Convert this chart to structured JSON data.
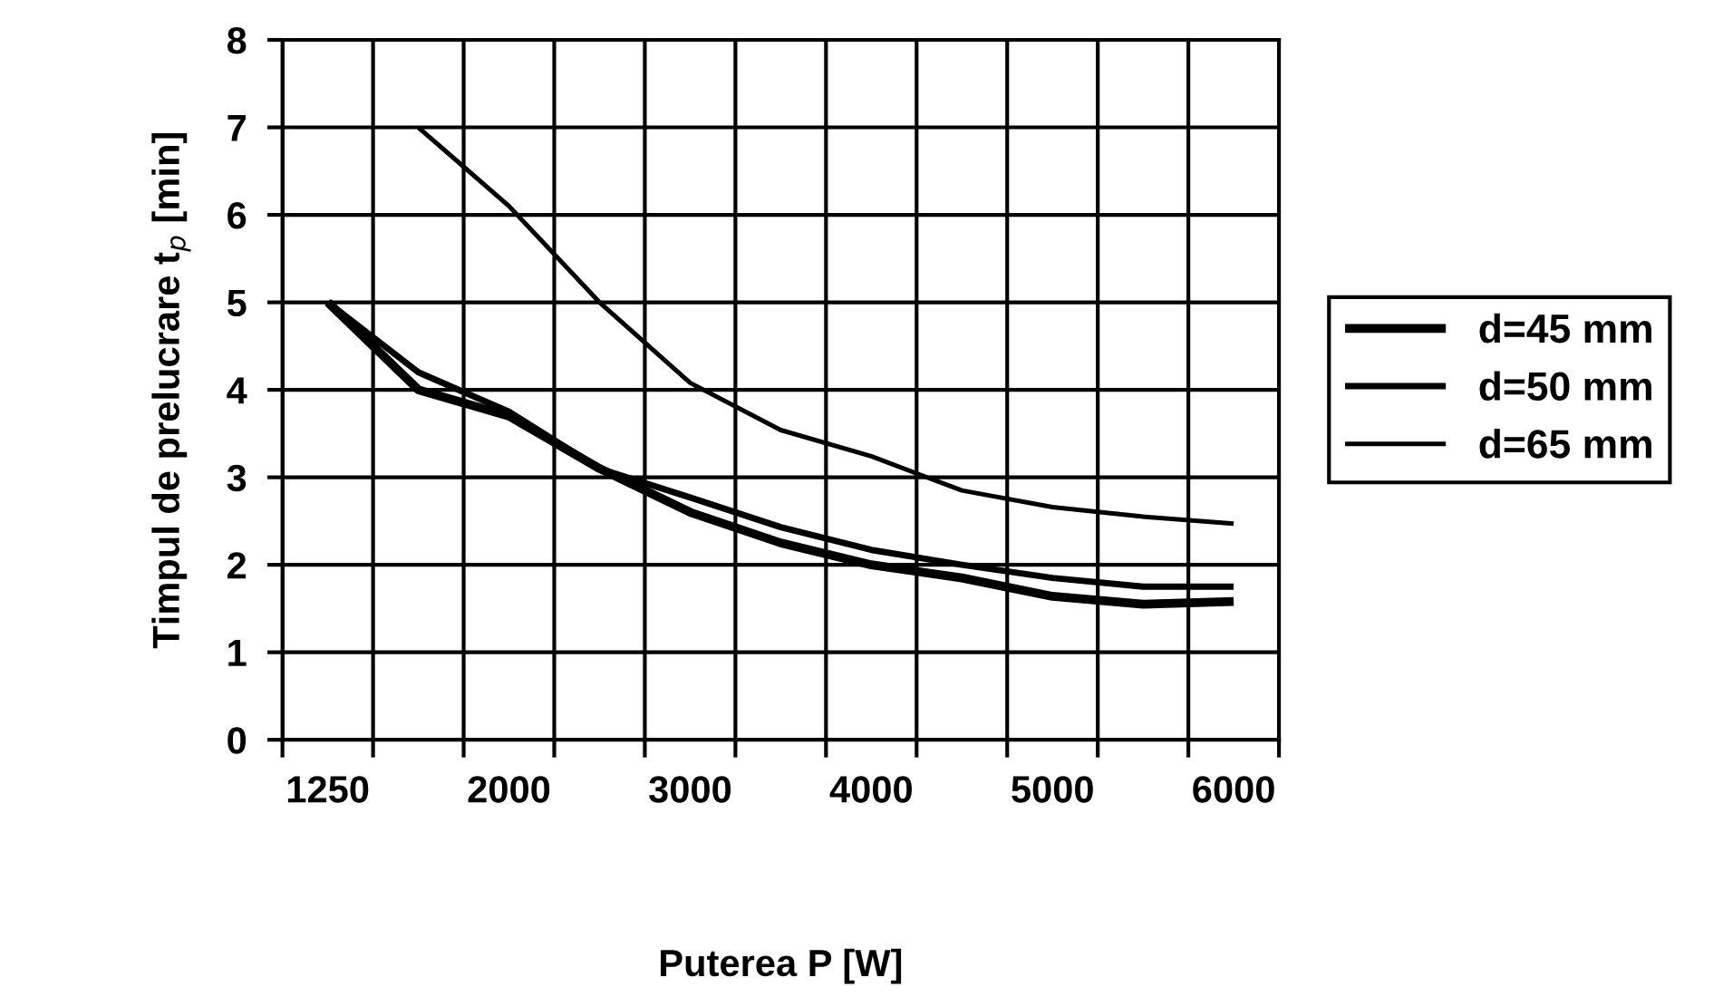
{
  "chart_data": {
    "type": "line",
    "xlabel": "Puterea P [W]",
    "ylabel": "Timpul de prelucrare t$_{p}$ [min]",
    "categories": [
      "1250",
      null,
      "2000",
      null,
      "3000",
      null,
      "4000",
      null,
      "5000",
      null,
      "6000"
    ],
    "series": [
      {
        "name": "d=45 mm",
        "color": "#000000",
        "values": [
          5.0,
          4.0,
          3.7,
          3.1,
          2.6,
          2.25,
          2.0,
          1.85,
          1.64,
          1.55,
          1.58
        ]
      },
      {
        "name": "d=50 mm",
        "color": "#000000",
        "values": [
          5.0,
          4.2,
          3.75,
          3.1,
          2.77,
          2.43,
          2.17,
          2.0,
          1.85,
          1.75,
          1.75
        ]
      },
      {
        "name": "d=65 mm",
        "color": "#000000",
        "values": [
          null,
          7.0,
          6.1,
          5.0,
          4.08,
          3.54,
          3.24,
          2.85,
          2.66,
          2.55,
          2.47
        ]
      }
    ],
    "ylim": [
      0,
      8
    ],
    "yticks": [
      0,
      1,
      2,
      3,
      4,
      5,
      6,
      7,
      8
    ],
    "grid": true,
    "legend": "right",
    "marker": "none",
    "line_style": "solid"
  }
}
